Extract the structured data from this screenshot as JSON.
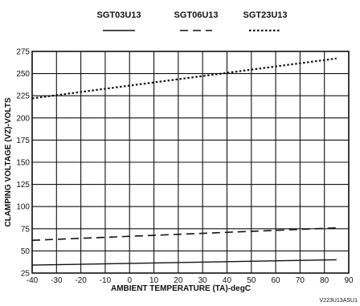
{
  "chart_data": {
    "type": "line",
    "xlabel": "AMBIENT TEMPERATURE (TA)-degC",
    "ylabel": "CLAMPING VOLTAGE  (VZ)-VOLTS",
    "xlim": [
      -40,
      90
    ],
    "ylim": [
      25,
      275
    ],
    "xticks": [
      "-40",
      "-30",
      "-20",
      "-10",
      "0",
      "10",
      "20",
      "30",
      "40",
      "50",
      "60",
      "70",
      "80",
      "90"
    ],
    "yticks": [
      "25",
      "50",
      "75",
      "100",
      "125",
      "150",
      "175",
      "200",
      "225",
      "250",
      "275"
    ],
    "grid": true,
    "legend_position": "top",
    "figure_code": "V223U13ASU1",
    "series": [
      {
        "name": "SGT03U13",
        "style": "solid",
        "x": [
          -40,
          85
        ],
        "y": [
          34,
          40
        ]
      },
      {
        "name": "SGT06U13",
        "style": "dashed",
        "x": [
          -40,
          85
        ],
        "y": [
          62,
          76
        ]
      },
      {
        "name": "SGT23U13",
        "style": "dotted",
        "x": [
          -40,
          85
        ],
        "y": [
          222,
          267
        ]
      }
    ]
  }
}
